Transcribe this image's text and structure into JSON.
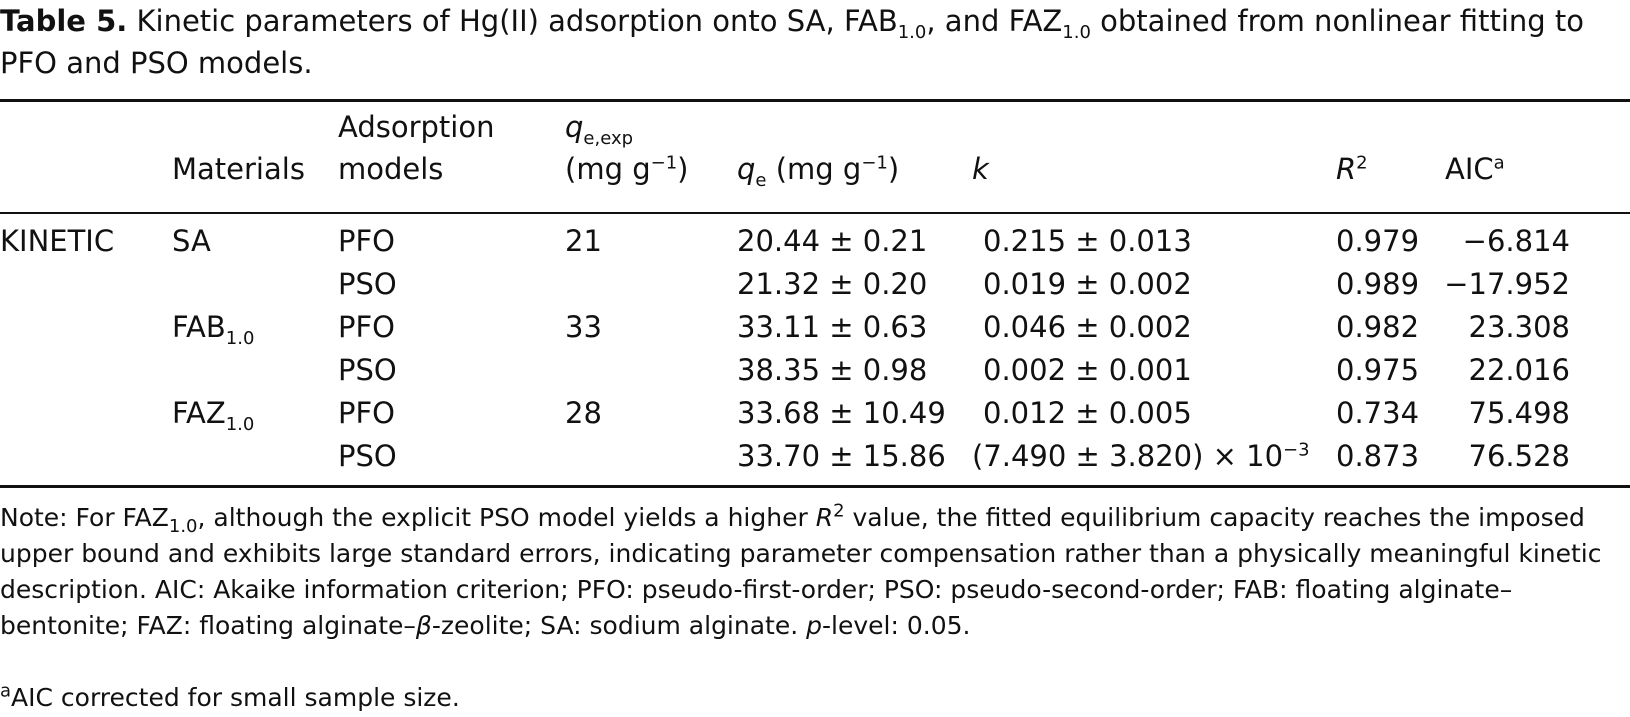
{
  "caption": {
    "label": "Table 5.",
    "text_pre": "Kinetic parameters of Hg(II) adsorption onto SA, FAB",
    "sub1": "1.0",
    "text_mid": ", and FAZ",
    "sub2": "1.0",
    "text_post": " obtained from nonlinear fitting to PFO and PSO models."
  },
  "headers": {
    "materials": "Materials",
    "models_line1": "Adsorption",
    "models_line2": "models",
    "qexp_sym": "q",
    "qexp_sub": "e,exp",
    "qexp_unit": "(mg g",
    "qexp_exp": "−1",
    "qexp_close": ")",
    "qe_sym": "q",
    "qe_sub": "e",
    "qe_unit": " (mg g",
    "qe_exp": "−1",
    "qe_close": ")",
    "k": "k",
    "r2_sym": "R",
    "r2_exp": "2",
    "aic": "AIC",
    "aic_sup": "a"
  },
  "group_label": "KINETIC",
  "rows": [
    {
      "material": "SA",
      "material_sub": "",
      "model": "PFO",
      "qexp": "21",
      "qe": "20.44 ± 0.21",
      "k": "0.215 ± 0.013",
      "r2": "0.979",
      "aic": "−6.814"
    },
    {
      "material": "",
      "material_sub": "",
      "model": "PSO",
      "qexp": "",
      "qe": "21.32 ± 0.20",
      "k": "0.019 ± 0.002",
      "r2": "0.989",
      "aic": "−17.952"
    },
    {
      "material": "FAB",
      "material_sub": "1.0",
      "model": "PFO",
      "qexp": "33",
      "qe": "33.11 ± 0.63",
      "k": "0.046 ± 0.002",
      "r2": "0.982",
      "aic": "23.308"
    },
    {
      "material": "",
      "material_sub": "",
      "model": "PSO",
      "qexp": "",
      "qe": "38.35 ± 0.98",
      "k": "0.002 ± 0.001",
      "r2": "0.975",
      "aic": "22.016"
    },
    {
      "material": "FAZ",
      "material_sub": "1.0",
      "model": "PFO",
      "qexp": "28",
      "qe": "33.68 ± 10.49",
      "k": "0.012 ± 0.005",
      "r2": "0.734",
      "aic": "75.498"
    },
    {
      "material": "",
      "material_sub": "",
      "model": "PSO",
      "qexp": "",
      "qe": "33.70 ± 15.86",
      "k": "(7.490 ± 3.820) × 10",
      "k_exp": "−3",
      "r2": "0.873",
      "aic": "76.528"
    }
  ],
  "note": {
    "p1": "Note: For FAZ",
    "sub": "1.0",
    "p2": ", although the explicit PSO model yields a higher ",
    "r": "R",
    "r_exp": "2",
    "p3": " value, the fitted equilibrium capacity reaches the imposed upper bound and exhibits large standard errors, indicating parameter compensation rather than a physically meaningful kinetic description. AIC: Akaike information criterion; PFO: pseudo-first-order; PSO: pseudo-second-order; FAB: floating alginate–bentonite; FAZ: floating alginate–",
    "beta": "β",
    "p4": "-zeolite; SA: sodium alginate. ",
    "p_sym": "p",
    "p5": "-level: 0.05."
  },
  "footnote": {
    "sup": "a",
    "text": "AIC corrected for small sample size."
  }
}
